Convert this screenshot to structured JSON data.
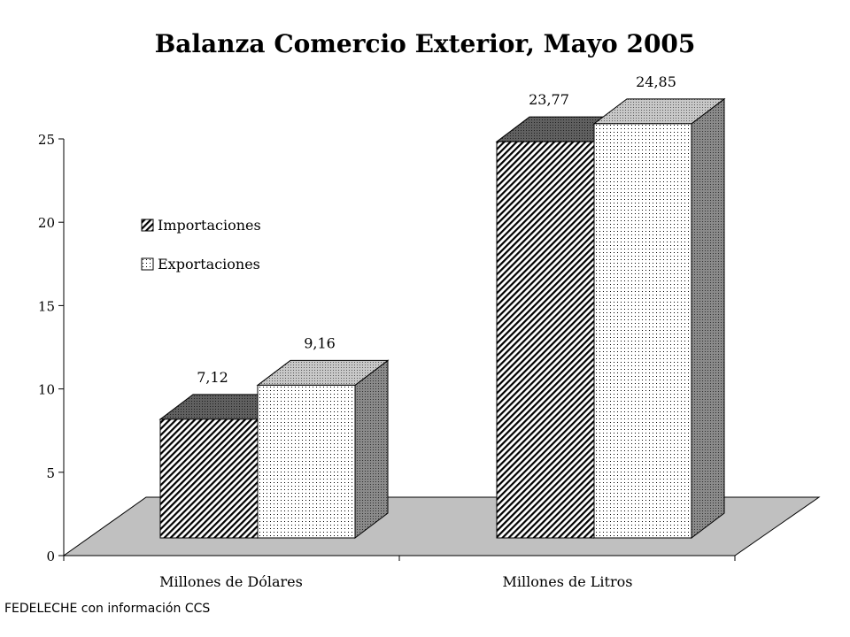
{
  "chart_data": {
    "type": "bar",
    "title": "Balanza Comercio Exterior, Mayo 2005",
    "categories": [
      "Millones de Dólares",
      "Millones de Litros"
    ],
    "series": [
      {
        "name": "Importaciones",
        "values": [
          7.12,
          23.77
        ],
        "labels": [
          "7,12",
          "23,77"
        ]
      },
      {
        "name": "Exportaciones",
        "values": [
          9.16,
          24.85
        ],
        "labels": [
          "9,16",
          "24,85"
        ]
      }
    ],
    "ylim": [
      0,
      25
    ],
    "yticks": [
      "0",
      "5",
      "10",
      "15",
      "20",
      "25"
    ],
    "xlabel": "",
    "ylabel": "",
    "legend_position": "upper-left inside plot",
    "grid": false,
    "source": "FEDELECHE con información CCS",
    "colors": {
      "floor": "#c0c0c0",
      "import_face": "#ffffff",
      "import_pattern": "#000000",
      "import_top": "#505050",
      "import_side": "#404040",
      "export_face": "#ffffff",
      "export_pattern": "#000000",
      "export_top": "#c0c0c0",
      "export_side": "#808080"
    }
  }
}
